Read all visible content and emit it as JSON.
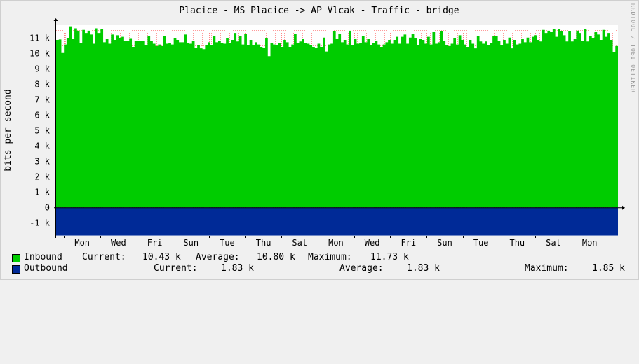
{
  "chart_data": {
    "type": "area",
    "title": "Placice - MS Placice -> AP Vlcak - Traffic - bridge",
    "ylabel": "bits per second",
    "watermark": "RRDTOOL / TOBI OETIKER",
    "ylim": [
      -1850,
      11850
    ],
    "y_ticks": [
      {
        "value": 11000,
        "label": "11 k"
      },
      {
        "value": 10000,
        "label": "10 k"
      },
      {
        "value": 9000,
        "label": "9 k"
      },
      {
        "value": 8000,
        "label": "8 k"
      },
      {
        "value": 7000,
        "label": "7 k"
      },
      {
        "value": 6000,
        "label": "6 k"
      },
      {
        "value": 5000,
        "label": "5 k"
      },
      {
        "value": 4000,
        "label": "4 k"
      },
      {
        "value": 3000,
        "label": "3 k"
      },
      {
        "value": 2000,
        "label": "2 k"
      },
      {
        "value": 1000,
        "label": "1 k"
      },
      {
        "value": 0,
        "label": "0"
      },
      {
        "value": -1000,
        "label": "-1 k"
      }
    ],
    "x_ticks": [
      "Mon",
      "Wed",
      "Fri",
      "Sun",
      "Tue",
      "Thu",
      "Sat",
      "Mon",
      "Wed",
      "Fri",
      "Sun",
      "Tue",
      "Thu",
      "Sat",
      "Mon"
    ],
    "grid": true,
    "colors": {
      "inbound": "#00cc00",
      "outbound": "#002a97",
      "grid": "#ff9999",
      "major_grid": "#ff6666"
    },
    "series": [
      {
        "name": "Inbound",
        "current": "10.43 k",
        "average": "10.80 k",
        "maximum": "11.73 k",
        "values": [
          10.85,
          10.88,
          10.0,
          10.55,
          10.95,
          11.73,
          10.9,
          11.6,
          11.45,
          10.65,
          11.5,
          11.3,
          11.45,
          11.2,
          10.6,
          11.6,
          11.3,
          11.55,
          10.7,
          10.9,
          10.6,
          11.2,
          10.85,
          11.15,
          10.95,
          11.05,
          10.8,
          10.78,
          10.92,
          10.4,
          10.8,
          10.78,
          10.8,
          10.8,
          10.5,
          11.1,
          10.8,
          10.6,
          10.45,
          10.55,
          10.45,
          11.1,
          10.6,
          10.65,
          10.55,
          10.95,
          10.85,
          10.7,
          10.7,
          11.2,
          10.65,
          10.6,
          10.8,
          10.35,
          10.5,
          10.3,
          10.25,
          10.5,
          10.7,
          10.5,
          11.1,
          10.7,
          10.8,
          10.65,
          10.6,
          10.95,
          10.65,
          10.85,
          11.3,
          10.75,
          11.1,
          10.55,
          11.25,
          10.5,
          10.85,
          10.5,
          10.7,
          10.55,
          10.4,
          10.35,
          10.95,
          9.8,
          10.65,
          10.55,
          10.5,
          10.65,
          10.4,
          10.85,
          10.7,
          10.4,
          10.55,
          11.25,
          10.65,
          10.75,
          10.9,
          10.65,
          10.6,
          10.5,
          10.4,
          10.35,
          10.6,
          10.4,
          11.0,
          10.1,
          10.55,
          10.6,
          11.4,
          10.9,
          11.25,
          10.7,
          10.85,
          10.55,
          11.45,
          10.5,
          10.9,
          10.6,
          10.65,
          11.1,
          10.7,
          10.9,
          10.5,
          10.65,
          10.8,
          10.55,
          10.4,
          10.55,
          10.7,
          10.85,
          10.6,
          10.85,
          11.05,
          10.6,
          11.05,
          11.2,
          10.6,
          11.0,
          11.25,
          10.95,
          10.5,
          10.9,
          10.85,
          10.6,
          11.05,
          10.55,
          11.35,
          10.6,
          10.7,
          11.4,
          10.8,
          10.5,
          10.45,
          10.6,
          10.95,
          10.55,
          11.15,
          10.85,
          10.55,
          10.4,
          10.85,
          10.6,
          10.3,
          11.1,
          10.75,
          10.6,
          10.75,
          10.5,
          10.65,
          11.1,
          11.1,
          10.8,
          10.5,
          10.85,
          10.6,
          11.0,
          10.3,
          10.85,
          10.55,
          10.6,
          10.9,
          10.7,
          11.0,
          10.7,
          11.05,
          11.15,
          10.85,
          10.75,
          11.5,
          11.3,
          11.45,
          11.35,
          11.55,
          11.05,
          11.55,
          11.4,
          11.15,
          10.75,
          11.4,
          10.75,
          10.9,
          11.45,
          11.3,
          10.8,
          11.55,
          10.75,
          11.1,
          10.95,
          11.35,
          11.2,
          10.85,
          11.5,
          11.05,
          11.3,
          10.85,
          10.05,
          10.45
        ]
      },
      {
        "name": "Outbound",
        "current": "1.83 k",
        "average": "1.83 k",
        "maximum": "1.85 k",
        "values": [
          -1.83
        ]
      }
    ]
  },
  "legend": {
    "inbound": {
      "label": "Inbound",
      "current_label": "Current:",
      "current": "10.43 k",
      "average_label": "Average:",
      "average": "10.80 k",
      "maximum_label": "Maximum:",
      "maximum": "11.73 k"
    },
    "outbound": {
      "label": "Outbound",
      "current_label": "Current:",
      "current": "1.83 k",
      "average_label": "Average:",
      "average": "1.83 k",
      "maximum_label": "Maximum:",
      "maximum": "1.85 k"
    }
  }
}
